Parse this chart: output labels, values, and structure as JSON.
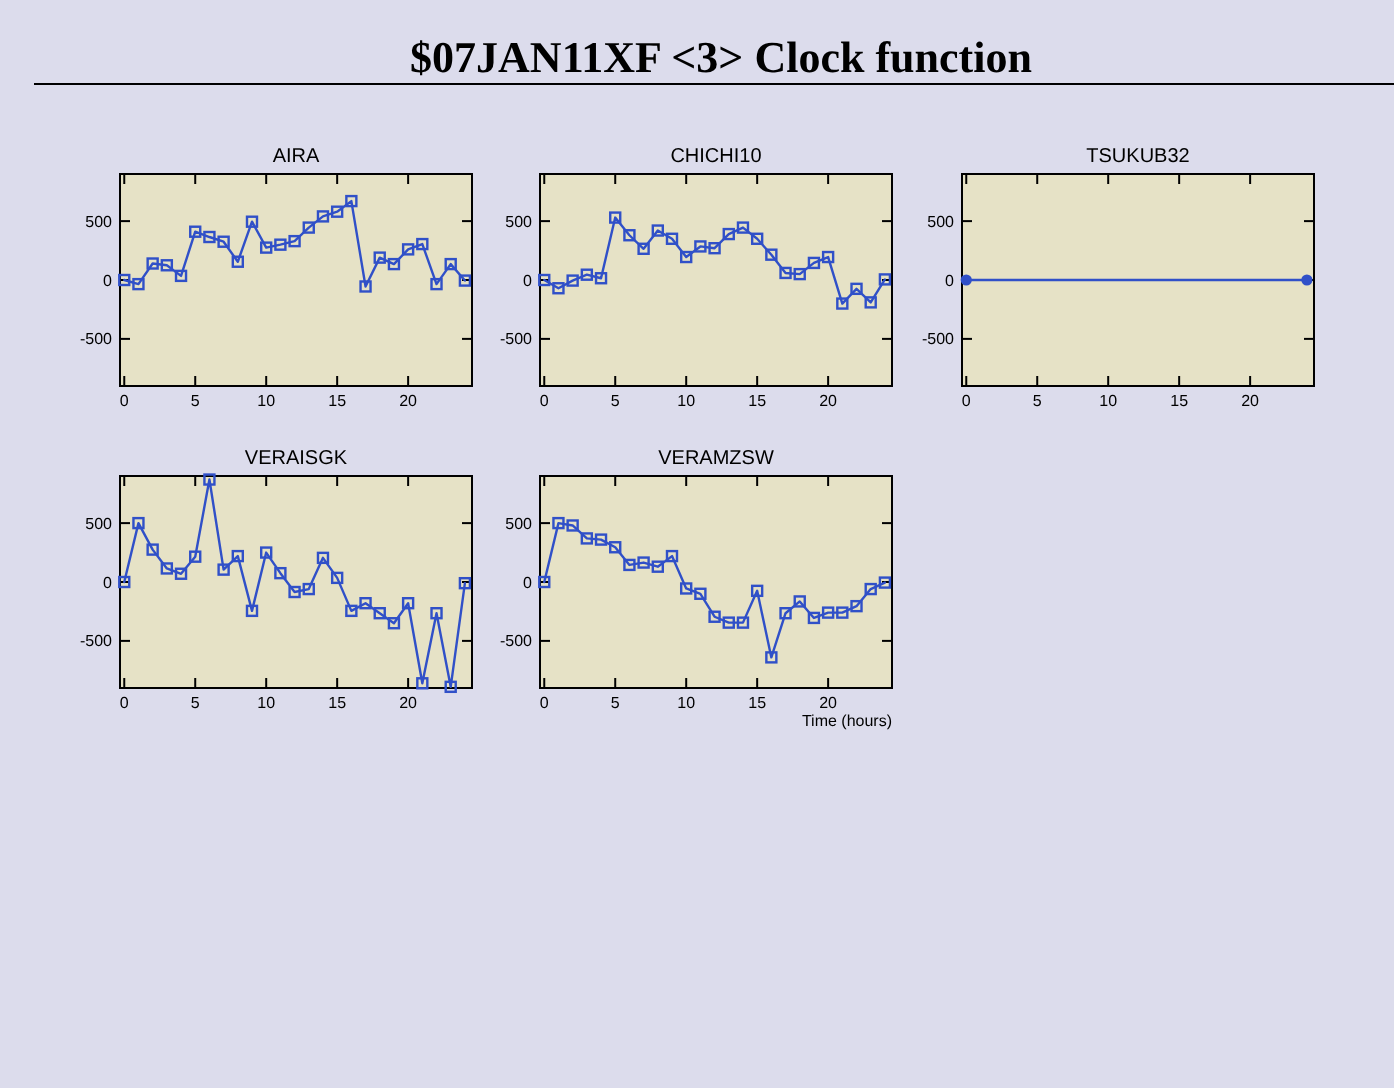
{
  "chart_data": [
    {
      "type": "other",
      "title": "$07JAN11XF <3>  Clock function"
    },
    {
      "type": "line",
      "title": "AIRA",
      "marker": "square",
      "grid": false,
      "xlim": [
        -0.3,
        24.5
      ],
      "ylim": [
        -900,
        900
      ],
      "xticks": [
        0,
        5,
        10,
        15,
        20
      ],
      "yticks": [
        -500,
        0,
        500
      ],
      "x": [
        0,
        1,
        2,
        3,
        4,
        5,
        6,
        7,
        8,
        9,
        10,
        11,
        12,
        13,
        14,
        15,
        16,
        17,
        18,
        19,
        20,
        21,
        22,
        23,
        24
      ],
      "series": [
        {
          "color": "#3050c8",
          "values": [
            0,
            -35,
            140,
            125,
            35,
            410,
            365,
            325,
            155,
            495,
            275,
            300,
            330,
            445,
            540,
            580,
            670,
            -55,
            190,
            135,
            260,
            305,
            -35,
            135,
            -5
          ]
        }
      ]
    },
    {
      "type": "line",
      "title": "CHICHI10",
      "marker": "square",
      "grid": false,
      "xlim": [
        -0.3,
        24.5
      ],
      "ylim": [
        -900,
        900
      ],
      "xticks": [
        0,
        5,
        10,
        15,
        20
      ],
      "yticks": [
        -500,
        0,
        500
      ],
      "x": [
        0,
        1,
        2,
        3,
        4,
        5,
        6,
        7,
        8,
        9,
        10,
        11,
        12,
        13,
        14,
        15,
        16,
        17,
        18,
        19,
        20,
        21,
        22,
        23,
        24
      ],
      "series": [
        {
          "color": "#3050c8",
          "values": [
            0,
            -70,
            -5,
            45,
            15,
            530,
            380,
            265,
            420,
            350,
            195,
            285,
            270,
            390,
            445,
            350,
            215,
            60,
            50,
            145,
            195,
            -200,
            -75,
            -190,
            5
          ]
        }
      ]
    },
    {
      "type": "line",
      "title": "TSUKUB32",
      "marker": "circle",
      "grid": false,
      "xlim": [
        -0.3,
        24.5
      ],
      "ylim": [
        -900,
        900
      ],
      "xticks": [
        0,
        5,
        10,
        15,
        20
      ],
      "yticks": [
        -500,
        0,
        500
      ],
      "x": [
        0,
        24
      ],
      "series": [
        {
          "color": "#3050c8",
          "values": [
            0,
            0
          ]
        }
      ]
    },
    {
      "type": "line",
      "title": "VERAISGK",
      "marker": "square",
      "grid": false,
      "xlim": [
        -0.3,
        24.5
      ],
      "ylim": [
        -900,
        900
      ],
      "xticks": [
        0,
        5,
        10,
        15,
        20
      ],
      "yticks": [
        -500,
        0,
        500
      ],
      "x": [
        0,
        1,
        2,
        3,
        4,
        5,
        6,
        7,
        8,
        9,
        10,
        11,
        12,
        13,
        14,
        15,
        16,
        17,
        18,
        19,
        20,
        21,
        22,
        23,
        24
      ],
      "series": [
        {
          "color": "#3050c8",
          "values": [
            0,
            500,
            275,
            115,
            70,
            215,
            870,
            105,
            220,
            -245,
            250,
            75,
            -85,
            -60,
            205,
            35,
            -245,
            -180,
            -265,
            -350,
            -180,
            -860,
            -265,
            -890,
            -10
          ]
        }
      ]
    },
    {
      "type": "line",
      "title": "VERAMZSW",
      "xlabel": "Time (hours)",
      "marker": "square",
      "grid": false,
      "xlim": [
        -0.3,
        24.5
      ],
      "ylim": [
        -900,
        900
      ],
      "xticks": [
        0,
        5,
        10,
        15,
        20
      ],
      "yticks": [
        -500,
        0,
        500
      ],
      "x": [
        0,
        1,
        2,
        3,
        4,
        5,
        6,
        7,
        8,
        9,
        10,
        11,
        12,
        13,
        14,
        15,
        16,
        17,
        18,
        19,
        20,
        21,
        22,
        23,
        24
      ],
      "series": [
        {
          "color": "#3050c8",
          "values": [
            0,
            500,
            480,
            370,
            360,
            295,
            145,
            165,
            130,
            220,
            -55,
            -100,
            -295,
            -345,
            -345,
            -75,
            -640,
            -265,
            -165,
            -305,
            -260,
            -260,
            -205,
            -60,
            -5
          ]
        }
      ]
    }
  ]
}
